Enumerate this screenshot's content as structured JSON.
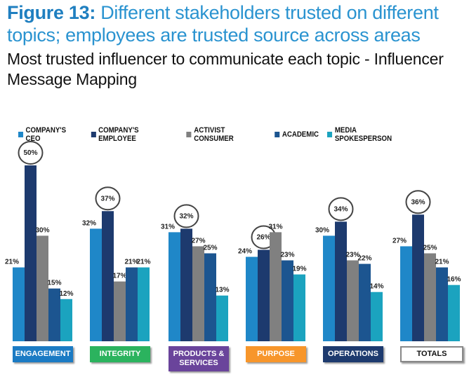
{
  "header": {
    "figure_label": "Figure 13:",
    "title": "Different stakeholders trusted on different topics; employees are trusted source across areas",
    "subtitle": "Most trusted influencer to communicate each topic - Influencer Message Mapping"
  },
  "chart_data": {
    "type": "bar",
    "title": "Most trusted influencer to communicate each topic - Influencer Message Mapping",
    "categories": [
      "ENGAGEMENT",
      "INTEGRITY",
      "PRODUCTS & SERVICES",
      "PURPOSE",
      "OPERATIONS",
      "TOTALS"
    ],
    "category_colors": [
      "#1b7bc4",
      "#2bb35e",
      "#6a449b",
      "#f7962b",
      "#1d3a6e",
      "#ffffff"
    ],
    "series": [
      {
        "name": "COMPANY'S CEO",
        "color": "#1f87c8",
        "values": [
          21,
          32,
          31,
          24,
          30,
          27
        ]
      },
      {
        "name": "COMPANY'S EMPLOYEE",
        "color": "#1d3a6e",
        "values": [
          50,
          37,
          32,
          26,
          34,
          36
        ]
      },
      {
        "name": "ACTIVIST CONSUMER",
        "color": "#808080",
        "values": [
          30,
          17,
          27,
          31,
          23,
          25
        ]
      },
      {
        "name": "ACADEMIC",
        "color": "#1c5590",
        "values": [
          15,
          21,
          25,
          23,
          22,
          21
        ]
      },
      {
        "name": "MEDIA SPOKESPERSON",
        "color": "#1ba3bf",
        "values": [
          12,
          21,
          13,
          19,
          14,
          16
        ]
      }
    ],
    "highlighted": "COMPANY'S EMPLOYEE",
    "value_format": "%",
    "legend": "top",
    "grid": false,
    "ylim": [
      0,
      50
    ]
  }
}
